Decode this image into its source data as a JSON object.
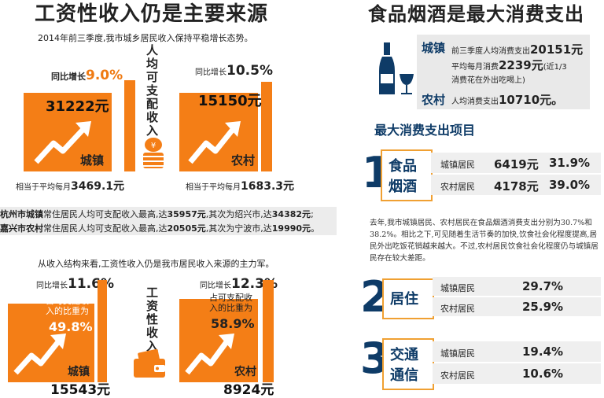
{
  "left": {
    "title": "工资性收入仍是主要来源",
    "subtitle1": "2014年前三季度,我市城乡居民收入保持平稳增长态势。",
    "center_vertical1": "人均可支配收入",
    "urban1": {
      "growth_label": "同比增长",
      "growth_value": "9.0%",
      "amount": "31222元",
      "label": "城镇",
      "monthly_label": "相当于平均每月",
      "monthly_value": "3469.1元"
    },
    "rural1": {
      "growth_label": "同比增长",
      "growth_value": "10.5%",
      "amount": "15150元",
      "label": "农村",
      "monthly_label": "相当于平均每月",
      "monthly_value": "1683.3元"
    },
    "line1": {
      "name": "杭州市城镇",
      "text": "常住居民人均可支配收入最高,达",
      "v1": "35957元",
      "mid": ",其次为绍兴市,达",
      "v2": "34382元",
      "end": ";"
    },
    "line2": {
      "name": "嘉兴市农村",
      "text": "常住居民人均可支配收入最高,达",
      "v1": "20505元",
      "mid": ",其次为宁波市,达",
      "v2": "19990元",
      "end": "。"
    },
    "subtitle2": "从收入结构来看,工资性收入仍是我市居民收入来源的主力军。",
    "center_vertical2": "工资性收入",
    "urban2": {
      "growth_label": "同比增长",
      "growth_value": "11.6%",
      "share_text": "占可支配收入的比重为",
      "share_value": "49.8%",
      "label": "城镇",
      "amount": "15543元"
    },
    "rural2": {
      "growth_label": "同比增长",
      "growth_value": "12.3%",
      "share_text": "占可支配收入的比重为",
      "share_value": "58.9%",
      "label": "农村",
      "amount": "8924元"
    }
  },
  "right": {
    "title": "食品烟酒是最大消费支出",
    "urban": {
      "label": "城镇",
      "line1_text": "前三季度人均消费支出",
      "line1_value": "20151元",
      "line2_text": "平均每月消费",
      "line2_value": "2239元",
      "line2_note": "(近1/3",
      "line3": "消费花在外出吃喝上)"
    },
    "rural": {
      "label": "农村",
      "text": "人均消费支出",
      "value": "10710元。"
    },
    "section_title": "最大消费支出项目",
    "items": [
      {
        "num": "1",
        "name_line1": "食品",
        "name_line2": "烟酒",
        "rows": [
          {
            "who": "城镇居民",
            "amount": "6419元",
            "pct": "31.9%"
          },
          {
            "who": "农村居民",
            "amount": "4178元",
            "pct": "39.0%"
          }
        ]
      },
      {
        "num": "2",
        "name_line1": "居住",
        "rows": [
          {
            "who": "城镇居民",
            "pct": "29.7%"
          },
          {
            "who": "农村居民",
            "pct": "25.9%"
          }
        ]
      },
      {
        "num": "3",
        "name_line1": "交通",
        "name_line2": "通信",
        "rows": [
          {
            "who": "城镇居民",
            "pct": "19.4%"
          },
          {
            "who": "农村居民",
            "pct": "10.6%"
          }
        ]
      }
    ],
    "paragraph": "去年,我市城镇居民、农村居民在食品烟酒消费支出分别为30.7%和38.2%。相比之下,可见随着生活节奏的加快,饮食社会化程度提高,居民外出吃饭花销越来越大。不过,农村居民饮食社会化程度仍与城镇居民存在较大差距。"
  },
  "colors": {
    "accent": "#f47e16",
    "navy": "#0e3b67"
  }
}
